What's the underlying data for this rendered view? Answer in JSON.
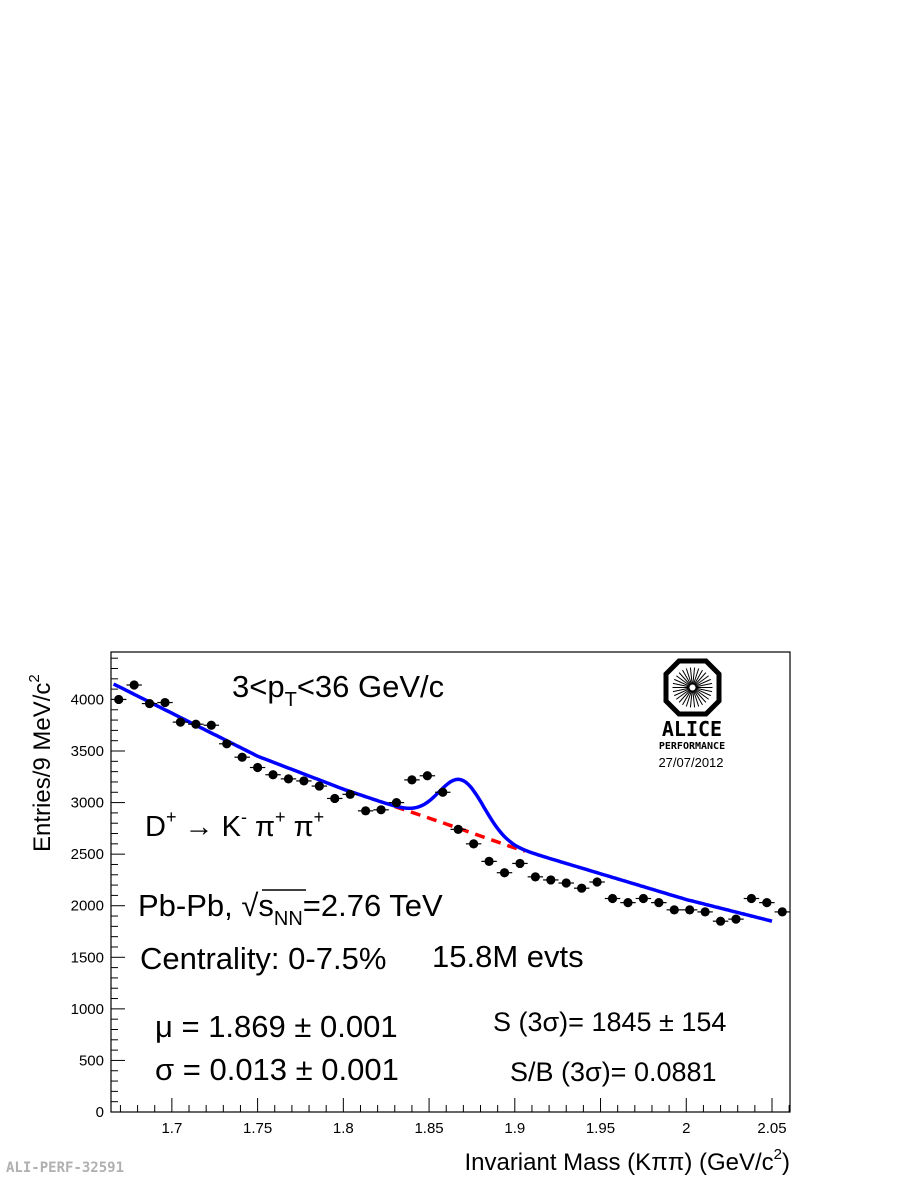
{
  "chart_data": {
    "type": "scatter",
    "xlabel_main": "Invariant Mass (K",
    "xlabel_pi": "ππ",
    "xlabel_units": ") (GeV/c",
    "xlabel_sup": "2",
    "xlabel_close": ")",
    "ylabel_main": "Entries/9 MeV/c",
    "ylabel_sup": "2",
    "xlim": [
      1.6645,
      2.0605
    ],
    "ylim": [
      0,
      4460
    ],
    "x_ticks": [
      1.7,
      1.75,
      1.8,
      1.85,
      1.9,
      1.95,
      2.0,
      2.05
    ],
    "x_tick_labels": [
      "1.7",
      "1.75",
      "1.8",
      "1.85",
      "1.9",
      "1.95",
      "2",
      "2.05"
    ],
    "y_ticks": [
      0,
      500,
      1000,
      1500,
      2000,
      2500,
      3000,
      3500,
      4000
    ],
    "y_tick_labels": [
      "0",
      "500",
      "1000",
      "1500",
      "2000",
      "2500",
      "3000",
      "3500",
      "4000"
    ],
    "bin_width": 0.009,
    "x": [
      1.669,
      1.678,
      1.687,
      1.696,
      1.705,
      1.714,
      1.723,
      1.732,
      1.741,
      1.75,
      1.759,
      1.768,
      1.777,
      1.786,
      1.795,
      1.804,
      1.813,
      1.822,
      1.831,
      1.84,
      1.849,
      1.858,
      1.867,
      1.876,
      1.885,
      1.894,
      1.903,
      1.912,
      1.921,
      1.93,
      1.939,
      1.948,
      1.957,
      1.966,
      1.975,
      1.984,
      1.993,
      2.002,
      2.011,
      2.02,
      2.029,
      2.038,
      2.047,
      2.056
    ],
    "y": [
      4000,
      4140,
      3960,
      3970,
      3780,
      3760,
      3750,
      3570,
      3440,
      3340,
      3270,
      3230,
      3210,
      3160,
      3040,
      3080,
      2920,
      2930,
      3000,
      3220,
      3260,
      3100,
      2740,
      2600,
      2430,
      2320,
      2410,
      2280,
      2250,
      2220,
      2170,
      2230,
      2070,
      2030,
      2070,
      2030,
      1960,
      1960,
      1940,
      1850,
      1870,
      2070,
      2030,
      1940
    ],
    "series": [
      {
        "name": "",
        "style": "data points with error bars",
        "color": "#000000"
      },
      {
        "name": "",
        "style": "total fit (solid)",
        "color": "#0000ff"
      },
      {
        "name": "",
        "style": "background fit (dashed)",
        "color": "#ff0000"
      }
    ],
    "fit": {
      "mu": 1.869,
      "sigma": 0.013,
      "background_points": [
        [
          1.666,
          4150
        ],
        [
          1.75,
          3450
        ],
        [
          1.8,
          3130
        ],
        [
          1.85,
          2850
        ],
        [
          1.9,
          2560
        ],
        [
          1.95,
          2310
        ],
        [
          2.0,
          2060
        ],
        [
          2.05,
          1850
        ]
      ],
      "signal_window_dashed": [
        1.83,
        1.908
      ]
    },
    "grid": false
  },
  "annotations": {
    "pt_range": {
      "pre": "3<p",
      "sub": "T",
      "post": "<36 GeV/c"
    },
    "decay": {
      "d": "D",
      "dsup": "+",
      "arrow": " → ",
      "k": "K",
      "ksup": "-",
      "pi1": " π",
      "pi1sup": "+",
      "pi2": " π",
      "pi2sup": "+"
    },
    "system": {
      "pre": "Pb-Pb, ",
      "sqrt": "√",
      "s": "s",
      "sub": "NN",
      "post": "=2.76 TeV"
    },
    "centrality": "Centrality: 0-7.5%",
    "events": "15.8M evts",
    "mu_line": "μ = 1.869 ± 0.001",
    "sigma_line": "σ = 0.013 ± 0.001",
    "signal_line": "S (3σ)= 1845 ± 154",
    "sb_line": "S/B (3σ)= 0.0881"
  },
  "logo": {
    "name": "ALICE",
    "subtitle": "PERFORMANCE",
    "date": "27/07/2012",
    "icon": "alice-detector-logo-icon"
  },
  "stamp": "ALI-PERF-32591"
}
